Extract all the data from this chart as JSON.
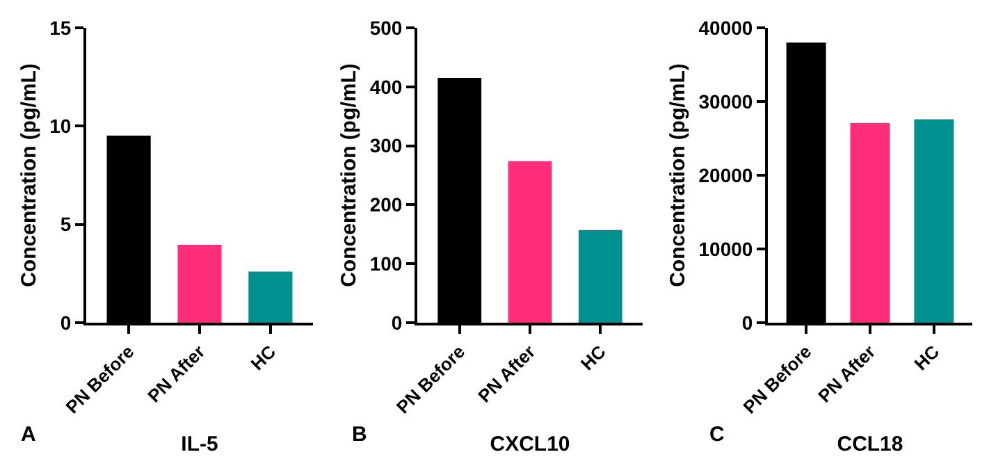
{
  "chart_data": [
    {
      "type": "bar",
      "xlabel": "IL-5",
      "ylabel": "Concentration (pg/mL)",
      "annotations": [
        "A"
      ],
      "categories": [
        "PN Before",
        "PN After",
        "HC"
      ],
      "values": [
        9.52,
        3.96,
        2.6
      ],
      "colors": [
        "#000000",
        "#ff2d7a",
        "#009090"
      ],
      "ylim": [
        0,
        15
      ],
      "yticks": [
        0,
        5,
        10,
        15
      ],
      "grid": false
    },
    {
      "type": "bar",
      "xlabel": "CXCL10",
      "ylabel": "Concentration (pg/mL)",
      "annotations": [
        "B"
      ],
      "categories": [
        "PN Before",
        "PN After",
        "HC"
      ],
      "values": [
        415,
        274,
        157
      ],
      "colors": [
        "#000000",
        "#ff2d7a",
        "#009090"
      ],
      "ylim": [
        0,
        500
      ],
      "yticks": [
        0,
        100,
        200,
        300,
        400,
        500
      ],
      "grid": false
    },
    {
      "type": "bar",
      "xlabel": "CCL18",
      "ylabel": "Concentration (pg/mL)",
      "annotations": [
        "C"
      ],
      "categories": [
        "PN Before",
        "PN After",
        "HC"
      ],
      "values": [
        38000,
        27100,
        27600
      ],
      "colors": [
        "#000000",
        "#ff2d7a",
        "#009090"
      ],
      "ylim": [
        0,
        40000
      ],
      "yticks": [
        0,
        10000,
        20000,
        30000,
        40000
      ],
      "grid": false
    }
  ]
}
